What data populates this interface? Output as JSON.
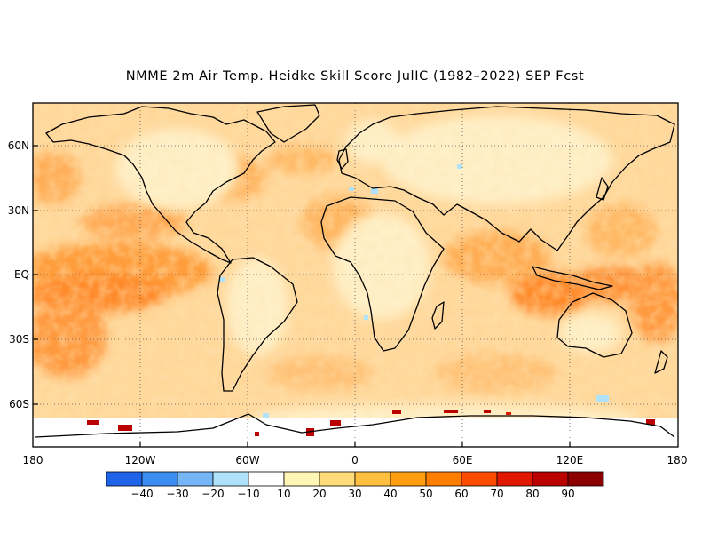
{
  "title": "NMME 2m Air Temp. Heidke Skill Score JulIC (1982–2022) SEP Fcst",
  "map": {
    "lat_labels": [
      "60N",
      "30N",
      "EQ",
      "30S",
      "60S"
    ],
    "lon_labels": [
      "180",
      "120W",
      "60W",
      "0",
      "60E",
      "120E",
      "180"
    ],
    "grid_lines": "dotted",
    "projection": "cylindrical equidistant",
    "lat_range": [
      -80,
      80
    ],
    "lon_range": [
      -180,
      180
    ]
  },
  "colorbar": {
    "labels": [
      "−40",
      "−30",
      "−20",
      "−10",
      "10",
      "20",
      "30",
      "40",
      "50",
      "60",
      "70",
      "80",
      "90"
    ],
    "colors": [
      "#1f64e8",
      "#3b8df2",
      "#74b6f6",
      "#aee3fb",
      "#ffffff",
      "#fff5b4",
      "#ffdc7a",
      "#ffc040",
      "#ff9f10",
      "#ff7e00",
      "#ff4c00",
      "#e01800",
      "#bb0000",
      "#8c0000"
    ]
  }
}
